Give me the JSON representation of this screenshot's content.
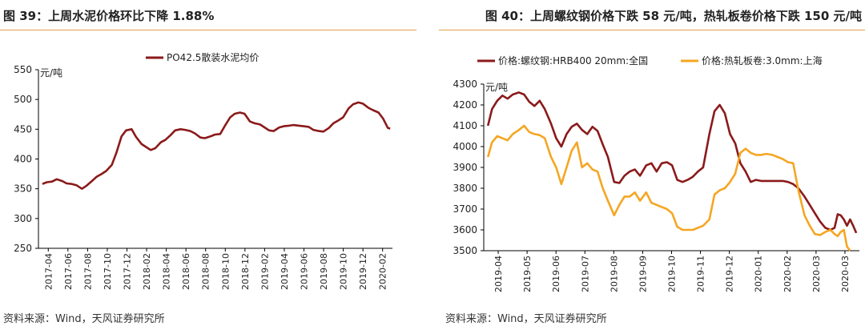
{
  "left": {
    "title": "图 39：上周水泥价格环比下降 1.88%",
    "source": "资料来源：Wind，天风证券研究所"
  },
  "right": {
    "title": "图 40：上周螺纹钢价格下跌 58 元/吨，热轧板卷价格下跌 150 元/吨",
    "source": "资料来源：Wind，天风证券研究所"
  },
  "chart_data": [
    {
      "type": "line",
      "unit_label": "元/吨",
      "ylim": [
        250,
        550
      ],
      "yticks": [
        250,
        300,
        350,
        400,
        450,
        500,
        550
      ],
      "x_tick_labels": [
        "2017-04",
        "2017-06",
        "2017-08",
        "2017-10",
        "2017-12",
        "2018-02",
        "2018-04",
        "2018-06",
        "2018-08",
        "2018-10",
        "2018-12",
        "2019-02",
        "2019-04",
        "2019-06",
        "2019-08",
        "2019-10",
        "2019-12",
        "2020-02"
      ],
      "grid": false,
      "legend_position": "top-center",
      "color": "#8b1a1a",
      "series": [
        {
          "name": "PO42.5散装水泥均价",
          "color": "#8b1a1a",
          "points": [
            [
              "2017-04-01",
              358
            ],
            [
              "2017-04-15",
              361
            ],
            [
              "2017-05-01",
              362
            ],
            [
              "2017-05-15",
              366
            ],
            [
              "2017-06-01",
              363
            ],
            [
              "2017-06-15",
              359
            ],
            [
              "2017-07-01",
              358
            ],
            [
              "2017-07-15",
              356
            ],
            [
              "2017-08-01",
              350
            ],
            [
              "2017-08-15",
              355
            ],
            [
              "2017-09-01",
              363
            ],
            [
              "2017-09-15",
              370
            ],
            [
              "2017-10-01",
              375
            ],
            [
              "2017-10-15",
              380
            ],
            [
              "2017-11-01",
              390
            ],
            [
              "2017-11-15",
              410
            ],
            [
              "2017-12-01",
              438
            ],
            [
              "2017-12-15",
              448
            ],
            [
              "2018-01-01",
              450
            ],
            [
              "2018-01-15",
              437
            ],
            [
              "2018-02-01",
              425
            ],
            [
              "2018-02-15",
              420
            ],
            [
              "2018-03-01",
              415
            ],
            [
              "2018-03-15",
              418
            ],
            [
              "2018-04-01",
              428
            ],
            [
              "2018-04-15",
              432
            ],
            [
              "2018-05-01",
              440
            ],
            [
              "2018-05-15",
              448
            ],
            [
              "2018-06-01",
              450
            ],
            [
              "2018-06-15",
              449
            ],
            [
              "2018-07-01",
              447
            ],
            [
              "2018-07-15",
              443
            ],
            [
              "2018-08-01",
              436
            ],
            [
              "2018-08-15",
              435
            ],
            [
              "2018-09-01",
              438
            ],
            [
              "2018-09-15",
              441
            ],
            [
              "2018-10-01",
              442
            ],
            [
              "2018-10-15",
              455
            ],
            [
              "2018-11-01",
              470
            ],
            [
              "2018-11-15",
              476
            ],
            [
              "2018-12-01",
              478
            ],
            [
              "2018-12-15",
              476
            ],
            [
              "2019-01-01",
              463
            ],
            [
              "2019-01-15",
              460
            ],
            [
              "2019-02-01",
              458
            ],
            [
              "2019-02-15",
              453
            ],
            [
              "2019-03-01",
              448
            ],
            [
              "2019-03-15",
              447
            ],
            [
              "2019-04-01",
              453
            ],
            [
              "2019-04-15",
              455
            ],
            [
              "2019-05-01",
              456
            ],
            [
              "2019-05-15",
              457
            ],
            [
              "2019-06-01",
              456
            ],
            [
              "2019-06-15",
              455
            ],
            [
              "2019-07-01",
              454
            ],
            [
              "2019-07-15",
              449
            ],
            [
              "2019-08-01",
              447
            ],
            [
              "2019-08-15",
              446
            ],
            [
              "2019-09-01",
              452
            ],
            [
              "2019-09-15",
              460
            ],
            [
              "2019-10-01",
              465
            ],
            [
              "2019-10-15",
              470
            ],
            [
              "2019-11-01",
              485
            ],
            [
              "2019-11-15",
              492
            ],
            [
              "2019-12-01",
              495
            ],
            [
              "2019-12-15",
              493
            ],
            [
              "2020-01-01",
              486
            ],
            [
              "2020-01-15",
              482
            ],
            [
              "2020-02-01",
              478
            ],
            [
              "2020-02-15",
              468
            ],
            [
              "2020-03-01",
              452
            ],
            [
              "2020-03-08",
              451
            ]
          ]
        }
      ]
    },
    {
      "type": "line",
      "unit_label": "元/吨",
      "ylim": [
        3500,
        4300
      ],
      "yticks": [
        3500,
        3600,
        3700,
        3800,
        3900,
        4000,
        4100,
        4200,
        4300
      ],
      "x_tick_labels": [
        "2019-04",
        "2019-05",
        "2019-06",
        "2019-07",
        "2019-08",
        "2019-09",
        "2019-10",
        "2019-11",
        "2019-12",
        "2020-01",
        "2020-02",
        "2020-03",
        "2020-03"
      ],
      "grid": false,
      "legend_position": "top-left",
      "series": [
        {
          "name": "价格:螺纹钢:HRB400 20mm:全国",
          "color": "#8b1a1a",
          "points": [
            [
              "2019-04-01",
              4100
            ],
            [
              "2019-04-05",
              4180
            ],
            [
              "2019-04-10",
              4220
            ],
            [
              "2019-04-15",
              4245
            ],
            [
              "2019-04-20",
              4230
            ],
            [
              "2019-04-25",
              4250
            ],
            [
              "2019-05-01",
              4260
            ],
            [
              "2019-05-06",
              4250
            ],
            [
              "2019-05-11",
              4215
            ],
            [
              "2019-05-16",
              4195
            ],
            [
              "2019-05-21",
              4220
            ],
            [
              "2019-05-26",
              4180
            ],
            [
              "2019-06-01",
              4110
            ],
            [
              "2019-06-06",
              4040
            ],
            [
              "2019-06-11",
              4000
            ],
            [
              "2019-06-16",
              4060
            ],
            [
              "2019-06-21",
              4095
            ],
            [
              "2019-06-26",
              4110
            ],
            [
              "2019-07-01",
              4080
            ],
            [
              "2019-07-06",
              4060
            ],
            [
              "2019-07-11",
              4095
            ],
            [
              "2019-07-16",
              4075
            ],
            [
              "2019-07-21",
              4010
            ],
            [
              "2019-07-26",
              3950
            ],
            [
              "2019-08-01",
              3830
            ],
            [
              "2019-08-06",
              3825
            ],
            [
              "2019-08-11",
              3860
            ],
            [
              "2019-08-16",
              3880
            ],
            [
              "2019-08-21",
              3890
            ],
            [
              "2019-08-26",
              3860
            ],
            [
              "2019-09-01",
              3910
            ],
            [
              "2019-09-06",
              3920
            ],
            [
              "2019-09-11",
              3880
            ],
            [
              "2019-09-16",
              3920
            ],
            [
              "2019-09-21",
              3925
            ],
            [
              "2019-09-26",
              3910
            ],
            [
              "2019-10-01",
              3840
            ],
            [
              "2019-10-06",
              3830
            ],
            [
              "2019-10-11",
              3840
            ],
            [
              "2019-10-16",
              3855
            ],
            [
              "2019-10-21",
              3880
            ],
            [
              "2019-10-26",
              3900
            ],
            [
              "2019-11-01",
              4060
            ],
            [
              "2019-11-06",
              4170
            ],
            [
              "2019-11-11",
              4200
            ],
            [
              "2019-11-16",
              4160
            ],
            [
              "2019-11-21",
              4060
            ],
            [
              "2019-11-26",
              4015
            ],
            [
              "2019-12-01",
              3920
            ],
            [
              "2019-12-06",
              3880
            ],
            [
              "2019-12-11",
              3830
            ],
            [
              "2019-12-16",
              3840
            ],
            [
              "2019-12-21",
              3835
            ],
            [
              "2019-12-26",
              3835
            ],
            [
              "2020-01-01",
              3835
            ],
            [
              "2020-01-06",
              3835
            ],
            [
              "2020-01-11",
              3835
            ],
            [
              "2020-01-16",
              3830
            ],
            [
              "2020-01-21",
              3820
            ],
            [
              "2020-01-26",
              3800
            ],
            [
              "2020-02-01",
              3760
            ],
            [
              "2020-02-06",
              3720
            ],
            [
              "2020-02-11",
              3680
            ],
            [
              "2020-02-16",
              3640
            ],
            [
              "2020-02-21",
              3610
            ],
            [
              "2020-02-26",
              3600
            ],
            [
              "2020-03-01",
              3610
            ],
            [
              "2020-03-04",
              3675
            ],
            [
              "2020-03-07",
              3670
            ],
            [
              "2020-03-10",
              3650
            ],
            [
              "2020-03-13",
              3620
            ],
            [
              "2020-03-16",
              3650
            ],
            [
              "2020-03-19",
              3620
            ],
            [
              "2020-03-22",
              3585
            ]
          ]
        },
        {
          "name": "价格:热轧板卷:3.0mm:上海",
          "color": "#f5a623",
          "points": [
            [
              "2019-04-01",
              3950
            ],
            [
              "2019-04-05",
              4020
            ],
            [
              "2019-04-10",
              4050
            ],
            [
              "2019-04-15",
              4040
            ],
            [
              "2019-04-20",
              4030
            ],
            [
              "2019-04-25",
              4060
            ],
            [
              "2019-05-01",
              4080
            ],
            [
              "2019-05-06",
              4100
            ],
            [
              "2019-05-11",
              4070
            ],
            [
              "2019-05-16",
              4060
            ],
            [
              "2019-05-21",
              4055
            ],
            [
              "2019-05-26",
              4040
            ],
            [
              "2019-06-01",
              3950
            ],
            [
              "2019-06-06",
              3900
            ],
            [
              "2019-06-11",
              3820
            ],
            [
              "2019-06-16",
              3900
            ],
            [
              "2019-06-21",
              3980
            ],
            [
              "2019-06-26",
              4020
            ],
            [
              "2019-07-01",
              3900
            ],
            [
              "2019-07-06",
              3920
            ],
            [
              "2019-07-11",
              3890
            ],
            [
              "2019-07-16",
              3880
            ],
            [
              "2019-07-21",
              3800
            ],
            [
              "2019-07-26",
              3740
            ],
            [
              "2019-08-01",
              3670
            ],
            [
              "2019-08-06",
              3720
            ],
            [
              "2019-08-11",
              3760
            ],
            [
              "2019-08-16",
              3760
            ],
            [
              "2019-08-21",
              3780
            ],
            [
              "2019-08-26",
              3740
            ],
            [
              "2019-09-01",
              3780
            ],
            [
              "2019-09-06",
              3730
            ],
            [
              "2019-09-11",
              3720
            ],
            [
              "2019-09-16",
              3710
            ],
            [
              "2019-09-21",
              3700
            ],
            [
              "2019-09-26",
              3680
            ],
            [
              "2019-10-01",
              3615
            ],
            [
              "2019-10-06",
              3600
            ],
            [
              "2019-10-11",
              3600
            ],
            [
              "2019-10-16",
              3600
            ],
            [
              "2019-10-21",
              3610
            ],
            [
              "2019-10-26",
              3620
            ],
            [
              "2019-11-01",
              3650
            ],
            [
              "2019-11-06",
              3770
            ],
            [
              "2019-11-11",
              3790
            ],
            [
              "2019-11-16",
              3800
            ],
            [
              "2019-11-21",
              3830
            ],
            [
              "2019-11-26",
              3870
            ],
            [
              "2019-12-01",
              3970
            ],
            [
              "2019-12-06",
              3990
            ],
            [
              "2019-12-11",
              3970
            ],
            [
              "2019-12-16",
              3960
            ],
            [
              "2019-12-21",
              3960
            ],
            [
              "2019-12-26",
              3965
            ],
            [
              "2020-01-01",
              3960
            ],
            [
              "2020-01-06",
              3950
            ],
            [
              "2020-01-11",
              3940
            ],
            [
              "2020-01-16",
              3925
            ],
            [
              "2020-01-21",
              3920
            ],
            [
              "2020-01-26",
              3790
            ],
            [
              "2020-02-01",
              3670
            ],
            [
              "2020-02-06",
              3620
            ],
            [
              "2020-02-11",
              3580
            ],
            [
              "2020-02-16",
              3575
            ],
            [
              "2020-02-21",
              3590
            ],
            [
              "2020-02-26",
              3600
            ],
            [
              "2020-03-01",
              3580
            ],
            [
              "2020-03-04",
              3570
            ],
            [
              "2020-03-07",
              3590
            ],
            [
              "2020-03-10",
              3600
            ],
            [
              "2020-03-13",
              3520
            ],
            [
              "2020-03-16",
              3500
            ]
          ]
        }
      ]
    }
  ]
}
